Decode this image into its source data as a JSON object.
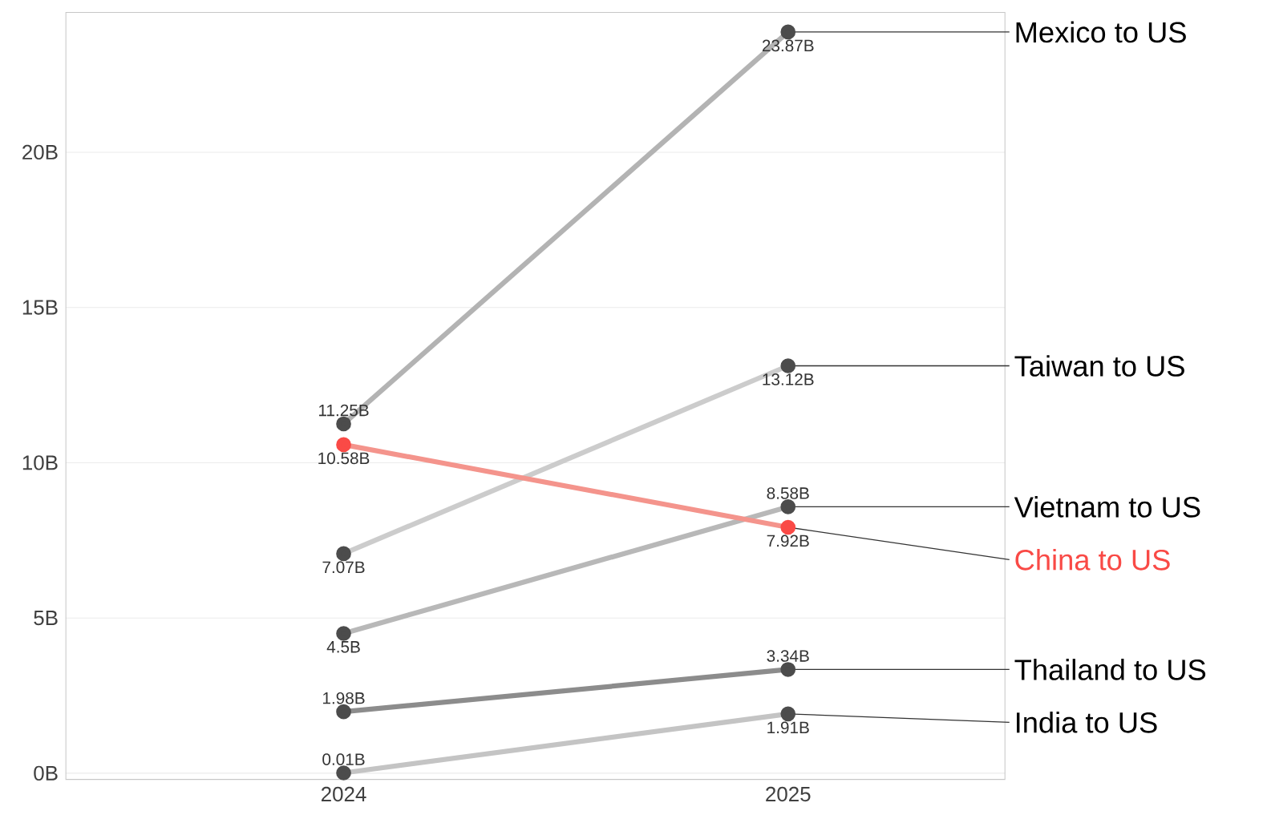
{
  "chart_data": {
    "type": "line",
    "categories": [
      "2024",
      "2025"
    ],
    "series": [
      {
        "name": "Mexico to US",
        "color": "#b3b3b3",
        "values": [
          11.25,
          23.87
        ],
        "value_labels": [
          "11.25B",
          "23.87B"
        ]
      },
      {
        "name": "Taiwan to US",
        "color": "#cccccc",
        "values": [
          7.07,
          13.12
        ],
        "value_labels": [
          "7.07B",
          "13.12B"
        ]
      },
      {
        "name": "Vietnam to US",
        "color": "#b8b8b8",
        "values": [
          4.5,
          8.58
        ],
        "value_labels": [
          "4.5B",
          "8.58B"
        ]
      },
      {
        "name": "China to US",
        "color": "#f4948c",
        "values": [
          10.58,
          7.92
        ],
        "value_labels": [
          "10.58B",
          "7.92B"
        ]
      },
      {
        "name": "Thailand to US",
        "color": "#8c8c8c",
        "values": [
          1.98,
          3.34
        ],
        "value_labels": [
          "1.98B",
          "3.34B"
        ]
      },
      {
        "name": "India to US",
        "color": "#c4c4c4",
        "values": [
          0.01,
          1.91
        ],
        "value_labels": [
          "0.01B",
          "1.91B"
        ]
      }
    ],
    "ylim": [
      -0.2,
      24.5
    ],
    "yticks": [
      {
        "value": 0,
        "label": "0B"
      },
      {
        "value": 5,
        "label": "5B"
      },
      {
        "value": 10,
        "label": "10B"
      },
      {
        "value": 15,
        "label": "15B"
      },
      {
        "value": 20,
        "label": "20B"
      }
    ],
    "grid": "y",
    "marker": "circle",
    "line_style": "solid"
  }
}
